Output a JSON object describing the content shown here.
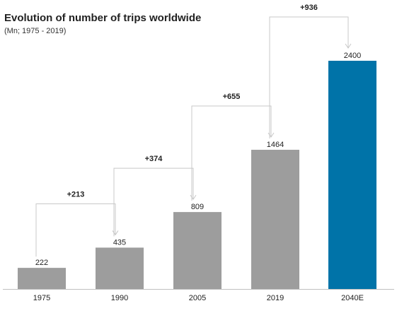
{
  "chart_data": {
    "type": "bar",
    "title": "Evolution of number of trips worldwide",
    "subtitle": "(Mn; 1975 - 2019)",
    "categories": [
      "1975",
      "1990",
      "2005",
      "2019",
      "2040E"
    ],
    "values": [
      222,
      435,
      809,
      1464,
      2400
    ],
    "bar_colors": [
      "#9d9d9d",
      "#9d9d9d",
      "#9d9d9d",
      "#9d9d9d",
      "#0073a8"
    ],
    "differences": [
      {
        "from": "1975",
        "to": "1990",
        "label": "+213"
      },
      {
        "from": "1990",
        "to": "2005",
        "label": "+374"
      },
      {
        "from": "2005",
        "to": "2019",
        "label": "+655"
      },
      {
        "from": "2019",
        "to": "2040E",
        "label": "+936"
      }
    ],
    "xlabel": "",
    "ylabel": "",
    "ylim": [
      0,
      2400
    ],
    "grid": false,
    "legend": "none"
  }
}
